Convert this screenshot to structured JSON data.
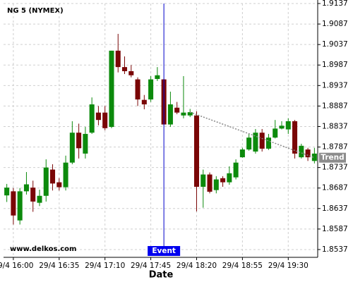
{
  "chart_data": {
    "type": "candlestick",
    "title": "NG 5 (NYMEX)",
    "x_label": "Date",
    "watermark": "www.delkos.com",
    "up_color": "#0c8a0c",
    "down_color": "#7a0606",
    "grid": true,
    "categories": [
      null,
      "29/4 16:00",
      null,
      null,
      null,
      null,
      null,
      null,
      "29/4 16:35",
      null,
      null,
      null,
      null,
      null,
      null,
      "29/4 17:10",
      null,
      null,
      null,
      null,
      null,
      null,
      "29/4 17:45",
      null,
      null,
      null,
      null,
      null,
      null,
      "29/4 18:20",
      null,
      null,
      null,
      null,
      null,
      null,
      "29/4 18:55",
      null,
      null,
      null,
      null,
      null,
      null,
      "29/4 19:30",
      null,
      null,
      null,
      null
    ],
    "open": [
      1.8669,
      1.8679,
      1.8608,
      1.8679,
      1.8688,
      1.8651,
      1.8668,
      1.8732,
      1.8701,
      1.8689,
      1.8749,
      1.8822,
      1.8771,
      1.8822,
      1.8871,
      1.8871,
      1.8836,
      1.9022,
      1.8982,
      1.8972,
      1.8952,
      1.8902,
      1.8903,
      1.8953,
      1.8952,
      1.8842,
      1.8883,
      1.8864,
      1.8864,
      1.8864,
      1.869,
      1.872,
      1.8682,
      1.8711,
      1.8701,
      1.8713,
      1.8762,
      1.8781,
      1.8776,
      1.8822,
      1.8783,
      1.881,
      1.8832,
      1.883,
      1.885,
      1.8762,
      1.8781,
      1.8753
    ],
    "high": [
      1.8697,
      1.8687,
      1.8687,
      1.8726,
      1.8705,
      1.8683,
      1.8757,
      1.8745,
      1.8711,
      1.8766,
      1.885,
      1.8844,
      1.8836,
      1.8908,
      1.8887,
      1.8887,
      1.9022,
      1.9063,
      1.9008,
      1.8987,
      1.8957,
      1.8914,
      1.896,
      1.8982,
      1.8953,
      1.8922,
      1.8897,
      1.896,
      1.888,
      1.8874,
      1.8732,
      1.8725,
      1.8716,
      1.8716,
      1.874,
      1.8757,
      1.8785,
      1.8819,
      1.8831,
      1.8831,
      1.8819,
      1.8853,
      1.885,
      1.8857,
      1.8853,
      1.8795,
      1.8785,
      1.8785
    ],
    "low": [
      1.8653,
      1.8598,
      1.8598,
      1.8671,
      1.8629,
      1.8643,
      1.8654,
      1.8681,
      1.8681,
      1.8681,
      1.8745,
      1.8759,
      1.8759,
      1.8819,
      1.884,
      1.8828,
      1.8833,
      1.8969,
      1.8965,
      1.8957,
      1.8887,
      1.8879,
      1.8897,
      1.8948,
      1.8842,
      1.8836,
      1.8867,
      1.8857,
      1.886,
      1.863,
      1.8639,
      1.8674,
      1.8674,
      1.869,
      1.8695,
      1.8708,
      1.8761,
      1.8778,
      1.8771,
      1.8776,
      1.878,
      1.8808,
      1.883,
      1.8819,
      1.8759,
      1.8759,
      1.8753,
      1.8747
    ],
    "close": [
      1.8688,
      1.862,
      1.8679,
      1.8696,
      1.8654,
      1.8668,
      1.8737,
      1.8698,
      1.8689,
      1.8749,
      1.8822,
      1.8784,
      1.8819,
      1.8891,
      1.8853,
      1.8833,
      1.9022,
      1.8982,
      1.8972,
      1.8962,
      1.8903,
      1.8891,
      1.8952,
      1.8962,
      1.8842,
      1.8891,
      1.8871,
      1.8871,
      1.8872,
      1.869,
      1.872,
      1.8678,
      1.8708,
      1.8701,
      1.8723,
      1.8749,
      1.8781,
      1.881,
      1.8822,
      1.8783,
      1.881,
      1.8832,
      1.8839,
      1.885,
      1.8771,
      1.879,
      1.8762,
      1.8771
    ],
    "ylim": [
      1.8518,
      1.9137
    ],
    "yticks": [
      1.9137,
      1.9087,
      1.9037,
      1.8987,
      1.8937,
      1.8887,
      1.8837,
      1.8787,
      1.8737,
      1.8687,
      1.8637,
      1.8587,
      1.8537
    ],
    "event": {
      "label": "Event",
      "index": 24
    },
    "trend": {
      "label": "Trend",
      "x": [
        28,
        47
      ],
      "values": [
        1.8872,
        1.8761
      ]
    }
  }
}
